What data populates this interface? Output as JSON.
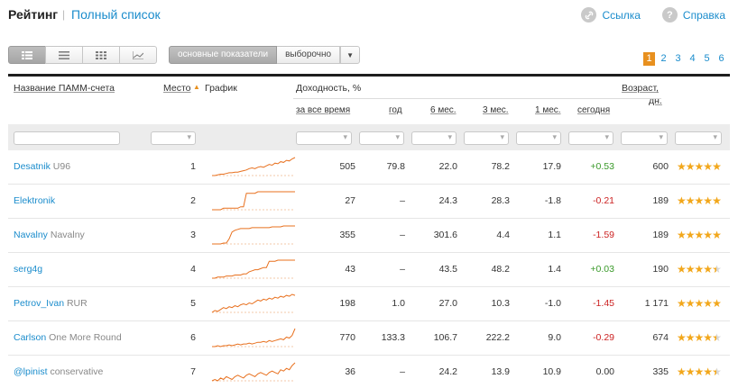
{
  "header": {
    "title": "Рейтинг",
    "separator": "|",
    "full_list": "Полный список",
    "link_label": "Ссылка",
    "help_label": "Справка"
  },
  "toolbar": {
    "segments": [
      "основные показатели",
      "выборочно"
    ]
  },
  "pager": [
    "1",
    "2",
    "3",
    "4",
    "5",
    "6"
  ],
  "columns": {
    "name": "Название ПАММ-счета",
    "place": "Место",
    "chart": "График",
    "yield": "Доходность, %",
    "all_time": "за все время",
    "year": "год",
    "m6": "6 мес.",
    "m3": "3 мес.",
    "m1": "1 мес.",
    "today": "сегодня",
    "age": "Возраст,",
    "age2": "дн."
  },
  "colors": {
    "accent": "#1a8ccc",
    "sparkline": "#e8701e",
    "positive": "#3a9a2a",
    "negative": "#cc2222",
    "stars": "#f2a71b",
    "current_page": "#e8901e"
  },
  "rows": [
    {
      "name": "Desatnik",
      "sub": "U96",
      "place": "1",
      "all": "505",
      "year": "79.8",
      "m6": "22.0",
      "m3": "78.2",
      "m1": "17.9",
      "today": "+0.53",
      "today_sign": "pos",
      "age": "600",
      "stars": 5,
      "spark": [
        4,
        4,
        5,
        6,
        6,
        7,
        8,
        8,
        9,
        9,
        10,
        11,
        12,
        14,
        15,
        14,
        16,
        17,
        16,
        18,
        20,
        19,
        22,
        21,
        24,
        23,
        26,
        25,
        28,
        30
      ]
    },
    {
      "name": "Elektronik",
      "sub": "",
      "place": "2",
      "all": "27",
      "year": "–",
      "m6": "24.3",
      "m3": "28.3",
      "m1": "-1.8",
      "today": "-0.21",
      "today_sign": "neg",
      "age": "189",
      "stars": 5,
      "spark": [
        3,
        3,
        3,
        3,
        4,
        4,
        4,
        4,
        4,
        4,
        5,
        5,
        14,
        14,
        14,
        14,
        15,
        15,
        15,
        15,
        15,
        15,
        15,
        15,
        15,
        15,
        15,
        15,
        15,
        15
      ]
    },
    {
      "name": "Navalny",
      "sub": "Navalny",
      "place": "3",
      "all": "355",
      "year": "–",
      "m6": "301.6",
      "m3": "4.4",
      "m1": "1.1",
      "today": "-1.59",
      "today_sign": "neg",
      "age": "189",
      "stars": 5,
      "spark": [
        2,
        2,
        2,
        2,
        3,
        3,
        8,
        16,
        18,
        19,
        20,
        20,
        20,
        20,
        21,
        21,
        21,
        21,
        21,
        21,
        21,
        22,
        22,
        22,
        22,
        23,
        23,
        23,
        23,
        23
      ]
    },
    {
      "name": "serg4g",
      "sub": "",
      "place": "4",
      "all": "43",
      "year": "–",
      "m6": "43.5",
      "m3": "48.2",
      "m1": "1.4",
      "today": "+0.03",
      "today_sign": "pos",
      "age": "190",
      "stars": 4.5,
      "spark": [
        2,
        2,
        3,
        3,
        3,
        4,
        4,
        4,
        5,
        5,
        5,
        6,
        6,
        8,
        9,
        10,
        10,
        11,
        12,
        12,
        18,
        18,
        18,
        19,
        19,
        19,
        19,
        19,
        19,
        19
      ]
    },
    {
      "name": "Petrov_Ivan",
      "sub": "RUR",
      "place": "5",
      "all": "198",
      "year": "1.0",
      "m6": "27.0",
      "m3": "10.3",
      "m1": "-1.0",
      "today": "-1.45",
      "today_sign": "neg",
      "age": "1 171",
      "stars": 5,
      "spark": [
        3,
        5,
        4,
        6,
        8,
        7,
        9,
        8,
        10,
        9,
        11,
        12,
        11,
        13,
        12,
        14,
        16,
        15,
        17,
        16,
        18,
        17,
        19,
        18,
        20,
        19,
        21,
        20,
        22,
        21
      ]
    },
    {
      "name": "Carlson",
      "sub": "One More Round",
      "place": "6",
      "all": "770",
      "year": "133.3",
      "m6": "106.7",
      "m3": "222.2",
      "m1": "9.0",
      "today": "-0.29",
      "today_sign": "neg",
      "age": "674",
      "stars": 4.5,
      "spark": [
        3,
        3,
        4,
        3,
        4,
        4,
        5,
        4,
        5,
        6,
        5,
        6,
        6,
        7,
        6,
        7,
        8,
        8,
        9,
        8,
        10,
        9,
        10,
        11,
        12,
        11,
        14,
        13,
        16,
        24
      ]
    },
    {
      "name": "@lpinist",
      "sub": "conservative",
      "place": "7",
      "all": "36",
      "year": "–",
      "m6": "24.2",
      "m3": "13.9",
      "m1": "10.9",
      "today": "0.00",
      "today_sign": "zero",
      "age": "335",
      "stars": 4.5,
      "spark": [
        3,
        4,
        3,
        5,
        4,
        6,
        5,
        4,
        6,
        7,
        6,
        5,
        7,
        8,
        7,
        6,
        8,
        9,
        8,
        7,
        9,
        10,
        9,
        8,
        11,
        10,
        12,
        11,
        14,
        16
      ]
    }
  ]
}
